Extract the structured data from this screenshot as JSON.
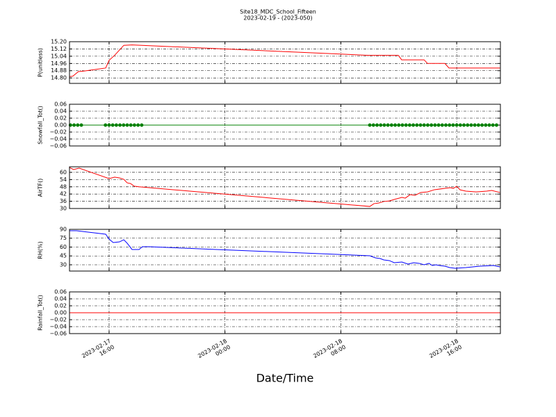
{
  "title": "Site18_MDC_School_Fifteen",
  "subtitle": "2023-02-19 - (2023-050)",
  "x_label": "Date/Time",
  "xlim": [
    "2023-02-17 13:16",
    "2023-02-18 19:01"
  ],
  "xticks": [
    {
      "value": "2023-02-17 16:00",
      "label": "2023-02-17\n16:00"
    },
    {
      "value": "2023-02-18 00:00",
      "label": "2023-02-18\n00:00"
    },
    {
      "value": "2023-02-18 08:00",
      "label": "2023-02-18\n08:00"
    },
    {
      "value": "2023-02-18 16:00",
      "label": "2023-02-18\n16:00"
    }
  ],
  "chart_data": [
    {
      "type": "line",
      "y_label": "P(unitless)",
      "color": "#ff0000",
      "markers": false,
      "grid": true,
      "ylim": [
        14.74,
        15.2
      ],
      "yticks": [
        {
          "value": 14.8,
          "label": "14.80"
        },
        14.88,
        14.96,
        15.04,
        15.12,
        {
          "value": 15.2,
          "label": "15.20"
        }
      ],
      "x": [
        "2023-02-17 13:16",
        "2023-02-17 13:30",
        "2023-02-17 13:53",
        "2023-02-17 14:13",
        "2023-02-17 15:46",
        "2023-02-17 16:00",
        "2023-02-17 16:23",
        "2023-02-17 17:01",
        "2023-02-17 17:35",
        "2023-02-18 09:54",
        "2023-02-18 11:58",
        "2023-02-18 12:12",
        "2023-02-18 13:45",
        "2023-02-18 13:59",
        "2023-02-18 15:11",
        "2023-02-18 15:28",
        "2023-02-18 18:59"
      ],
      "values": [
        14.815,
        14.82,
        14.87,
        14.875,
        14.91,
        14.995,
        15.05,
        15.16,
        15.165,
        15.05,
        15.05,
        15.0,
        15.0,
        14.96,
        14.96,
        14.91,
        14.91
      ]
    },
    {
      "type": "line",
      "y_label": "Snowfall_Tot()",
      "color": "#008000",
      "markers": true,
      "grid": true,
      "ylim": [
        -0.06,
        0.06
      ],
      "yticks": [
        {
          "value": -0.06,
          "label": "−0.06"
        },
        {
          "value": -0.04,
          "label": "−0.04"
        },
        {
          "value": -0.02,
          "label": "−0.02"
        },
        {
          "value": 0,
          "label": "0.00"
        },
        0.02,
        0.04,
        0.06
      ],
      "x": [
        "2023-02-17 13:20",
        "2023-02-17 13:35",
        "2023-02-17 13:50",
        "2023-02-17 14:05",
        "2023-02-17 15:45",
        "2023-02-17 16:00",
        "2023-02-17 16:15",
        "2023-02-17 16:30",
        "2023-02-17 16:45",
        "2023-02-17 17:00",
        "2023-02-17 17:15",
        "2023-02-17 17:30",
        "2023-02-17 17:45",
        "2023-02-17 18:00",
        "2023-02-17 18:15",
        "2023-02-18 10:00",
        "2023-02-18 10:15",
        "2023-02-18 10:30",
        "2023-02-18 10:45",
        "2023-02-18 11:00",
        "2023-02-18 11:15",
        "2023-02-18 11:30",
        "2023-02-18 11:45",
        "2023-02-18 12:00",
        "2023-02-18 12:15",
        "2023-02-18 12:30",
        "2023-02-18 12:45",
        "2023-02-18 13:00",
        "2023-02-18 13:15",
        "2023-02-18 13:30",
        "2023-02-18 13:45",
        "2023-02-18 14:00",
        "2023-02-18 14:15",
        "2023-02-18 14:30",
        "2023-02-18 14:45",
        "2023-02-18 15:00",
        "2023-02-18 15:15",
        "2023-02-18 15:30",
        "2023-02-18 15:45",
        "2023-02-18 16:00",
        "2023-02-18 16:15",
        "2023-02-18 16:30",
        "2023-02-18 16:45",
        "2023-02-18 17:00",
        "2023-02-18 17:15",
        "2023-02-18 17:30",
        "2023-02-18 17:45",
        "2023-02-18 18:00",
        "2023-02-18 18:15",
        "2023-02-18 18:30",
        "2023-02-18 18:45"
      ],
      "values": [
        0,
        0,
        0,
        0,
        0,
        0,
        0,
        0,
        0,
        0,
        0,
        0,
        0,
        0,
        0,
        0,
        0,
        0,
        0,
        0,
        0,
        0,
        0,
        0,
        0,
        0,
        0,
        0,
        0,
        0,
        0,
        0,
        0,
        0,
        0,
        0,
        0,
        0,
        0,
        0,
        0,
        0,
        0,
        0,
        0,
        0,
        0,
        0,
        0,
        0,
        0
      ]
    },
    {
      "type": "line",
      "y_label": "AirTF()",
      "color": "#ff0000",
      "markers": false,
      "grid": true,
      "ylim": [
        30,
        64.6
      ],
      "yticks": [
        30,
        36,
        42,
        48,
        54,
        60
      ],
      "x": [
        "2023-02-17 13:16",
        "2023-02-17 13:33",
        "2023-02-17 13:56",
        "2023-02-17 16:00",
        "2023-02-17 16:23",
        "2023-02-17 16:43",
        "2023-02-17 17:01",
        "2023-02-17 17:15",
        "2023-02-17 17:29",
        "2023-02-17 17:44",
        "2023-02-17 18:04",
        "2023-02-18 10:00",
        "2023-02-18 10:17",
        "2023-02-18 10:38",
        "2023-02-18 10:58",
        "2023-02-18 11:21",
        "2023-02-18 11:41",
        "2023-02-18 12:13",
        "2023-02-18 12:27",
        "2023-02-18 12:47",
        "2023-02-18 13:07",
        "2023-02-18 13:31",
        "2023-02-18 13:59",
        "2023-02-18 14:28",
        "2023-02-18 15:11",
        "2023-02-18 15:34",
        "2023-02-18 15:46",
        "2023-02-18 16:00",
        "2023-02-18 16:14",
        "2023-02-18 16:38",
        "2023-02-18 17:21",
        "2023-02-18 18:04",
        "2023-02-18 18:25",
        "2023-02-18 18:59"
      ],
      "values": [
        64.0,
        62.3,
        63.5,
        54.8,
        56.0,
        55.4,
        54.2,
        51.3,
        50.7,
        48.5,
        48.0,
        31.7,
        34.0,
        34.6,
        35.8,
        36.3,
        37.5,
        39.2,
        38.6,
        41.5,
        40.9,
        43.3,
        43.8,
        45.6,
        46.7,
        47.3,
        46.7,
        48.4,
        45.5,
        44.4,
        43.8,
        44.4,
        45.0,
        43.3
      ]
    },
    {
      "type": "line",
      "y_label": "RH(%)",
      "color": "#0000ff",
      "markers": false,
      "grid": true,
      "ylim": [
        19.4,
        90
      ],
      "yticks": [
        30,
        45,
        60,
        75,
        90
      ],
      "x": [
        "2023-02-17 13:16",
        "2023-02-17 13:45",
        "2023-02-17 15:46",
        "2023-02-17 16:00",
        "2023-02-17 16:17",
        "2023-02-17 16:43",
        "2023-02-17 17:01",
        "2023-02-17 17:15",
        "2023-02-17 17:35",
        "2023-02-17 18:04",
        "2023-02-17 18:18",
        "2023-02-17 18:47",
        "2023-02-18 10:00",
        "2023-02-18 10:23",
        "2023-02-18 10:43",
        "2023-02-18 10:58",
        "2023-02-18 11:21",
        "2023-02-18 11:41",
        "2023-02-18 12:13",
        "2023-02-18 12:38",
        "2023-02-18 13:02",
        "2023-02-18 13:25",
        "2023-02-18 13:45",
        "2023-02-18 14:05",
        "2023-02-18 14:19",
        "2023-02-18 14:34",
        "2023-02-18 14:48",
        "2023-02-18 15:11",
        "2023-02-18 15:31",
        "2023-02-18 15:54",
        "2023-02-18 16:38",
        "2023-02-18 17:07",
        "2023-02-18 17:35",
        "2023-02-18 18:33",
        "2023-02-18 18:59"
      ],
      "values": [
        87.6,
        87.6,
        81.8,
        73.5,
        67.6,
        68.8,
        72.4,
        66.5,
        55.9,
        55.9,
        60.6,
        60.6,
        45.3,
        41.8,
        40.6,
        38.2,
        37.1,
        33.5,
        34.7,
        31.2,
        33.5,
        32.4,
        30.0,
        32.4,
        28.8,
        30.0,
        28.8,
        27.6,
        25.3,
        24.1,
        25.3,
        26.5,
        27.6,
        28.8,
        26.5
      ]
    },
    {
      "type": "line",
      "y_label": "Rainfall_Tot()",
      "color": "#ff0000",
      "markers": false,
      "grid": true,
      "ylim": [
        -0.06,
        0.06
      ],
      "yticks": [
        {
          "value": -0.06,
          "label": "−0.06"
        },
        {
          "value": -0.04,
          "label": "−0.04"
        },
        {
          "value": -0.02,
          "label": "−0.02"
        },
        {
          "value": 0,
          "label": "0.00"
        },
        0.02,
        0.04,
        0.06
      ],
      "x": [
        "2023-02-17 13:16",
        "2023-02-18 18:59"
      ],
      "values": [
        0,
        0
      ]
    }
  ]
}
